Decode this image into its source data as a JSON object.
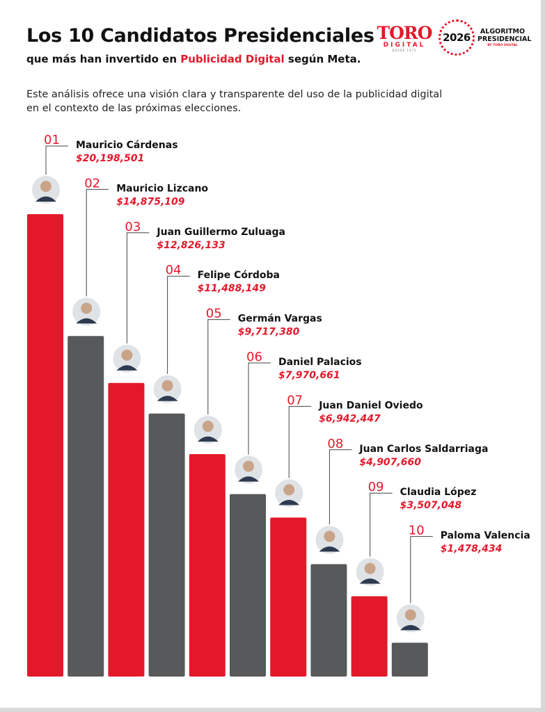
{
  "header": {
    "title": "Los 10 Candidatos Presidenciales",
    "subtitle_pre": "que más han invertido en ",
    "subtitle_highlight": "Publicidad Digital",
    "subtitle_mid": " según ",
    "subtitle_end": "Meta.",
    "description": "Este análisis ofrece una visión clara y transparente del uso de la publicidad digital en el contexto de las próximas elecciones."
  },
  "logos": {
    "toro_word": "TORO",
    "toro_sub": "DIGITAL",
    "toro_since": "DESDE 1972",
    "seal_year": "2026",
    "algo_line1": "ALGORITMO",
    "algo_line2": "PRESIDENCIAL",
    "algo_line3": "BY TORO DIGITAL"
  },
  "colors": {
    "red": "#e3192b",
    "gray": "#57595b",
    "bg": "#ffffff"
  },
  "chart_data": {
    "type": "bar",
    "title": "Los 10 Candidatos Presidenciales",
    "categories": [
      "Mauricio Cárdenas",
      "Mauricio Lizcano",
      "Juan Guillermo Zuluaga",
      "Felipe Córdoba",
      "Germán Vargas",
      "Daniel Palacios",
      "Juan Daniel Oviedo",
      "Juan Carlos Saldarriaga",
      "Claudia López",
      "Paloma Valencia"
    ],
    "values": [
      20198501,
      14875109,
      12826133,
      11488149,
      9717380,
      7970661,
      6942447,
      4907660,
      3507048,
      1478434
    ],
    "ranks": [
      "01",
      "02",
      "03",
      "04",
      "05",
      "06",
      "07",
      "08",
      "09",
      "10"
    ],
    "value_labels": [
      "$20,198,501",
      "$14,875,109",
      "$12,826,133",
      "$11,488,149",
      "$9,717,380",
      "$7,970,661",
      "$6,942,447",
      "$4,907,660",
      "$3,507,048",
      "$1,478,434"
    ],
    "bar_colors": [
      "#e3192b",
      "#57595b",
      "#e3192b",
      "#57595b",
      "#e3192b",
      "#57595b",
      "#e3192b",
      "#57595b",
      "#e3192b",
      "#57595b"
    ],
    "avatar_icons": [
      "avatar-icon",
      "avatar-icon",
      "avatar-icon",
      "avatar-icon",
      "avatar-icon",
      "avatar-icon",
      "avatar-icon",
      "avatar-icon",
      "avatar-icon",
      "avatar-icon"
    ],
    "xlabel": "",
    "ylabel": "",
    "legend": "none",
    "grid": false
  }
}
